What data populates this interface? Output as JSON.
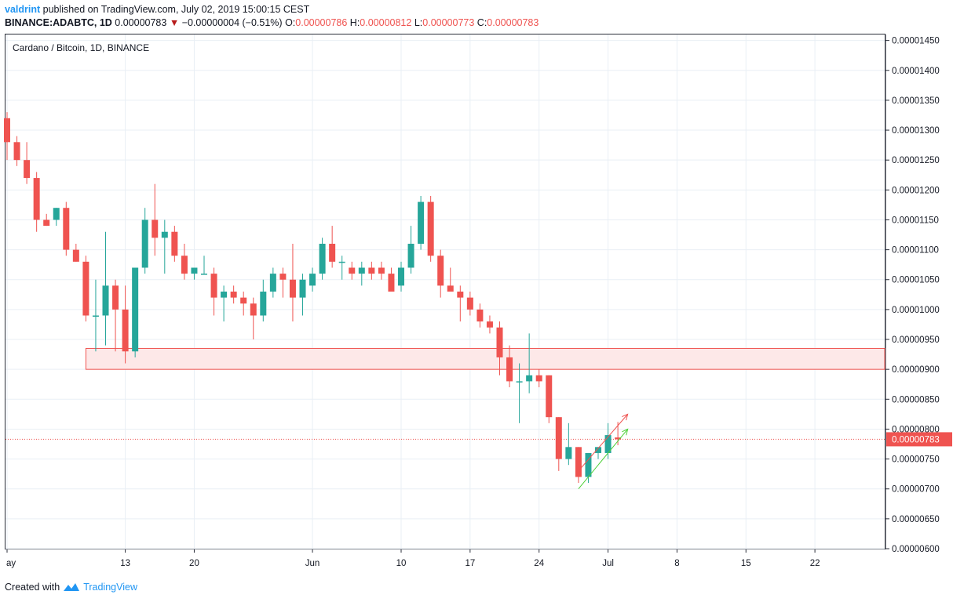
{
  "header": {
    "author": "valdrint",
    "published_text": "published on TradingView.com, July 02, 2019 15:00:15 CEST",
    "symbol_line": "BINANCE:ADABTC, 1D",
    "last": "0.00000783",
    "change": "−0.00000004 (−0.51%)",
    "o_label": "O:",
    "o_value": "0.00000786",
    "h_label": "H:",
    "h_value": "0.00000812",
    "l_label": "L:",
    "l_value": "0.00000773",
    "c_label": "C:",
    "c_value": "0.00000783"
  },
  "footer": {
    "created_with": "Created with",
    "brand": "TradingView"
  },
  "colors": {
    "up": "#26a69a",
    "down": "#ef5350",
    "zone_fill": "#fde8e8",
    "zone_stroke": "#ef5350",
    "grid": "#e9eff5",
    "arrow_green": "#4cd137"
  },
  "chart_data": {
    "type": "candlestick",
    "title": "Cardano / Bitcoin, 1D, BINANCE",
    "ylim": [
      6e-06,
      1.46e-05
    ],
    "y_ticks": [
      "0.00001450",
      "0.00001400",
      "0.00001350",
      "0.00001300",
      "0.00001250",
      "0.00001200",
      "0.00001150",
      "0.00001100",
      "0.00001050",
      "0.00001000",
      "0.00000950",
      "0.00000900",
      "0.00000850",
      "0.00000800",
      "0.00000750",
      "0.00000700",
      "0.00000650",
      "0.00000600"
    ],
    "x_ticks": [
      {
        "label": "ay",
        "date": "2019-05-01"
      },
      {
        "label": "13",
        "date": "2019-05-13"
      },
      {
        "label": "20",
        "date": "2019-05-20"
      },
      {
        "label": "Jun",
        "date": "2019-06-01"
      },
      {
        "label": "10",
        "date": "2019-06-10"
      },
      {
        "label": "17",
        "date": "2019-06-17"
      },
      {
        "label": "24",
        "date": "2019-06-24"
      },
      {
        "label": "Jul",
        "date": "2019-07-01"
      },
      {
        "label": "8",
        "date": "2019-07-08"
      },
      {
        "label": "15",
        "date": "2019-07-15"
      },
      {
        "label": "22",
        "date": "2019-07-22"
      }
    ],
    "x_range": [
      "2019-05-01",
      "2019-07-28"
    ],
    "last_price_label": "0.00000783",
    "last_price": 7.83e-06,
    "support_zone": {
      "from_date": "2019-05-09",
      "to_date": "2019-07-28",
      "low": 9e-06,
      "high": 9.35e-06
    },
    "trend_arrows": [
      {
        "color": "red",
        "from": {
          "date": "2019-06-28",
          "price": 7.3e-06
        },
        "to": {
          "date": "2019-07-03",
          "price": 8.25e-06
        }
      },
      {
        "color": "green",
        "from": {
          "date": "2019-06-28",
          "price": 7e-06
        },
        "to": {
          "date": "2019-07-03",
          "price": 8e-06
        }
      }
    ],
    "candles": [
      {
        "date": "2019-05-01",
        "o": 1.32e-05,
        "h": 1.33e-05,
        "l": 1.25e-05,
        "c": 1.28e-05
      },
      {
        "date": "2019-05-02",
        "o": 1.28e-05,
        "h": 1.29e-05,
        "l": 1.24e-05,
        "c": 1.25e-05
      },
      {
        "date": "2019-05-03",
        "o": 1.25e-05,
        "h": 1.28e-05,
        "l": 1.21e-05,
        "c": 1.22e-05
      },
      {
        "date": "2019-05-04",
        "o": 1.22e-05,
        "h": 1.23e-05,
        "l": 1.13e-05,
        "c": 1.15e-05
      },
      {
        "date": "2019-05-05",
        "o": 1.15e-05,
        "h": 1.16e-05,
        "l": 1.14e-05,
        "c": 1.14e-05
      },
      {
        "date": "2019-05-06",
        "o": 1.15e-05,
        "h": 1.17e-05,
        "l": 1.14e-05,
        "c": 1.17e-05
      },
      {
        "date": "2019-05-07",
        "o": 1.17e-05,
        "h": 1.18e-05,
        "l": 1.09e-05,
        "c": 1.1e-05
      },
      {
        "date": "2019-05-08",
        "o": 1.1e-05,
        "h": 1.11e-05,
        "l": 1.08e-05,
        "c": 1.08e-05
      },
      {
        "date": "2019-05-09",
        "o": 1.08e-05,
        "h": 1.09e-05,
        "l": 9.8e-06,
        "c": 9.9e-06
      },
      {
        "date": "2019-05-10",
        "o": 9.9e-06,
        "h": 1.05e-05,
        "l": 9.3e-06,
        "c": 9.9e-06
      },
      {
        "date": "2019-05-11",
        "o": 9.9e-06,
        "h": 1.13e-05,
        "l": 9.4e-06,
        "c": 1.04e-05
      },
      {
        "date": "2019-05-12",
        "o": 1.04e-05,
        "h": 1.05e-05,
        "l": 9.3e-06,
        "c": 1e-05
      },
      {
        "date": "2019-05-13",
        "o": 1e-05,
        "h": 1.04e-05,
        "l": 9.1e-06,
        "c": 9.3e-06
      },
      {
        "date": "2019-05-14",
        "o": 9.3e-06,
        "h": 1.07e-05,
        "l": 9.2e-06,
        "c": 1.07e-05
      },
      {
        "date": "2019-05-15",
        "o": 1.07e-05,
        "h": 1.17e-05,
        "l": 1.06e-05,
        "c": 1.15e-05
      },
      {
        "date": "2019-05-16",
        "o": 1.15e-05,
        "h": 1.21e-05,
        "l": 1.09e-05,
        "c": 1.12e-05
      },
      {
        "date": "2019-05-17",
        "o": 1.12e-05,
        "h": 1.15e-05,
        "l": 1.06e-05,
        "c": 1.13e-05
      },
      {
        "date": "2019-05-18",
        "o": 1.13e-05,
        "h": 1.14e-05,
        "l": 1.08e-05,
        "c": 1.09e-05
      },
      {
        "date": "2019-05-19",
        "o": 1.09e-05,
        "h": 1.11e-05,
        "l": 1.05e-05,
        "c": 1.06e-05
      },
      {
        "date": "2019-05-20",
        "o": 1.06e-05,
        "h": 1.07e-05,
        "l": 1.05e-05,
        "c": 1.07e-05
      },
      {
        "date": "2019-05-21",
        "o": 1.06e-05,
        "h": 1.09e-05,
        "l": 1.06e-05,
        "c": 1.06e-05
      },
      {
        "date": "2019-05-22",
        "o": 1.06e-05,
        "h": 1.07e-05,
        "l": 9.9e-06,
        "c": 1.02e-05
      },
      {
        "date": "2019-05-23",
        "o": 1.02e-05,
        "h": 1.04e-05,
        "l": 9.8e-06,
        "c": 1.03e-05
      },
      {
        "date": "2019-05-24",
        "o": 1.03e-05,
        "h": 1.04e-05,
        "l": 1.01e-05,
        "c": 1.02e-05
      },
      {
        "date": "2019-05-25",
        "o": 1.02e-05,
        "h": 1.03e-05,
        "l": 9.9e-06,
        "c": 1.01e-05
      },
      {
        "date": "2019-05-26",
        "o": 1.01e-05,
        "h": 1.02e-05,
        "l": 9.5e-06,
        "c": 9.9e-06
      },
      {
        "date": "2019-05-27",
        "o": 9.9e-06,
        "h": 1.05e-05,
        "l": 9.8e-06,
        "c": 1.03e-05
      },
      {
        "date": "2019-05-28",
        "o": 1.03e-05,
        "h": 1.07e-05,
        "l": 1.02e-05,
        "c": 1.06e-05
      },
      {
        "date": "2019-05-29",
        "o": 1.06e-05,
        "h": 1.07e-05,
        "l": 1.02e-05,
        "c": 1.05e-05
      },
      {
        "date": "2019-05-30",
        "o": 1.05e-05,
        "h": 1.11e-05,
        "l": 9.8e-06,
        "c": 1.02e-05
      },
      {
        "date": "2019-05-31",
        "o": 1.02e-05,
        "h": 1.06e-05,
        "l": 9.9e-06,
        "c": 1.05e-05
      },
      {
        "date": "2019-06-01",
        "o": 1.04e-05,
        "h": 1.07e-05,
        "l": 1.03e-05,
        "c": 1.06e-05
      },
      {
        "date": "2019-06-02",
        "o": 1.06e-05,
        "h": 1.12e-05,
        "l": 1.05e-05,
        "c": 1.11e-05
      },
      {
        "date": "2019-06-03",
        "o": 1.11e-05,
        "h": 1.14e-05,
        "l": 1.07e-05,
        "c": 1.08e-05
      },
      {
        "date": "2019-06-04",
        "o": 1.08e-05,
        "h": 1.09e-05,
        "l": 1.05e-05,
        "c": 1.08e-05
      },
      {
        "date": "2019-06-05",
        "o": 1.07e-05,
        "h": 1.08e-05,
        "l": 1.05e-05,
        "c": 1.06e-05
      },
      {
        "date": "2019-06-06",
        "o": 1.06e-05,
        "h": 1.08e-05,
        "l": 1.04e-05,
        "c": 1.07e-05
      },
      {
        "date": "2019-06-07",
        "o": 1.07e-05,
        "h": 1.08e-05,
        "l": 1.05e-05,
        "c": 1.06e-05
      },
      {
        "date": "2019-06-08",
        "o": 1.07e-05,
        "h": 1.08e-05,
        "l": 1.05e-05,
        "c": 1.06e-05
      },
      {
        "date": "2019-06-09",
        "o": 1.06e-05,
        "h": 1.07e-05,
        "l": 1.03e-05,
        "c": 1.03e-05
      },
      {
        "date": "2019-06-10",
        "o": 1.04e-05,
        "h": 1.08e-05,
        "l": 1.03e-05,
        "c": 1.07e-05
      },
      {
        "date": "2019-06-11",
        "o": 1.07e-05,
        "h": 1.14e-05,
        "l": 1.06e-05,
        "c": 1.11e-05
      },
      {
        "date": "2019-06-12",
        "o": 1.11e-05,
        "h": 1.19e-05,
        "l": 1.1e-05,
        "c": 1.18e-05
      },
      {
        "date": "2019-06-13",
        "o": 1.18e-05,
        "h": 1.19e-05,
        "l": 1.08e-05,
        "c": 1.09e-05
      },
      {
        "date": "2019-06-14",
        "o": 1.09e-05,
        "h": 1.1e-05,
        "l": 1.02e-05,
        "c": 1.04e-05
      },
      {
        "date": "2019-06-15",
        "o": 1.04e-05,
        "h": 1.07e-05,
        "l": 1.03e-05,
        "c": 1.03e-05
      },
      {
        "date": "2019-06-16",
        "o": 1.03e-05,
        "h": 1.04e-05,
        "l": 9.8e-06,
        "c": 1.02e-05
      },
      {
        "date": "2019-06-17",
        "o": 1.02e-05,
        "h": 1.03e-05,
        "l": 9.9e-06,
        "c": 1e-05
      },
      {
        "date": "2019-06-18",
        "o": 1e-05,
        "h": 1.01e-05,
        "l": 9.7e-06,
        "c": 9.8e-06
      },
      {
        "date": "2019-06-19",
        "o": 9.8e-06,
        "h": 9.9e-06,
        "l": 9.6e-06,
        "c": 9.7e-06
      },
      {
        "date": "2019-06-20",
        "o": 9.7e-06,
        "h": 9.8e-06,
        "l": 8.9e-06,
        "c": 9.2e-06
      },
      {
        "date": "2019-06-21",
        "o": 9.2e-06,
        "h": 9.4e-06,
        "l": 8.7e-06,
        "c": 8.8e-06
      },
      {
        "date": "2019-06-22",
        "o": 8.8e-06,
        "h": 9.1e-06,
        "l": 8.1e-06,
        "c": 8.8e-06
      },
      {
        "date": "2019-06-23",
        "o": 8.8e-06,
        "h": 9.6e-06,
        "l": 8.6e-06,
        "c": 8.9e-06
      },
      {
        "date": "2019-06-24",
        "o": 8.9e-06,
        "h": 9e-06,
        "l": 8.7e-06,
        "c": 8.8e-06
      },
      {
        "date": "2019-06-25",
        "o": 8.9e-06,
        "h": 8.9e-06,
        "l": 8.1e-06,
        "c": 8.2e-06
      },
      {
        "date": "2019-06-26",
        "o": 8.2e-06,
        "h": 8.2e-06,
        "l": 7.3e-06,
        "c": 7.5e-06
      },
      {
        "date": "2019-06-27",
        "o": 7.5e-06,
        "h": 8.1e-06,
        "l": 7.4e-06,
        "c": 7.7e-06
      },
      {
        "date": "2019-06-28",
        "o": 7.7e-06,
        "h": 7.7e-06,
        "l": 7.1e-06,
        "c": 7.2e-06
      },
      {
        "date": "2019-06-29",
        "o": 7.2e-06,
        "h": 7.6e-06,
        "l": 7.1e-06,
        "c": 7.6e-06
      },
      {
        "date": "2019-06-30",
        "o": 7.6e-06,
        "h": 7.7e-06,
        "l": 7.5e-06,
        "c": 7.7e-06
      },
      {
        "date": "2019-07-01",
        "o": 7.6e-06,
        "h": 8.1e-06,
        "l": 7.5e-06,
        "c": 7.9e-06
      },
      {
        "date": "2019-07-02",
        "o": 7.86e-06,
        "h": 8.12e-06,
        "l": 7.73e-06,
        "c": 7.83e-06
      }
    ]
  }
}
